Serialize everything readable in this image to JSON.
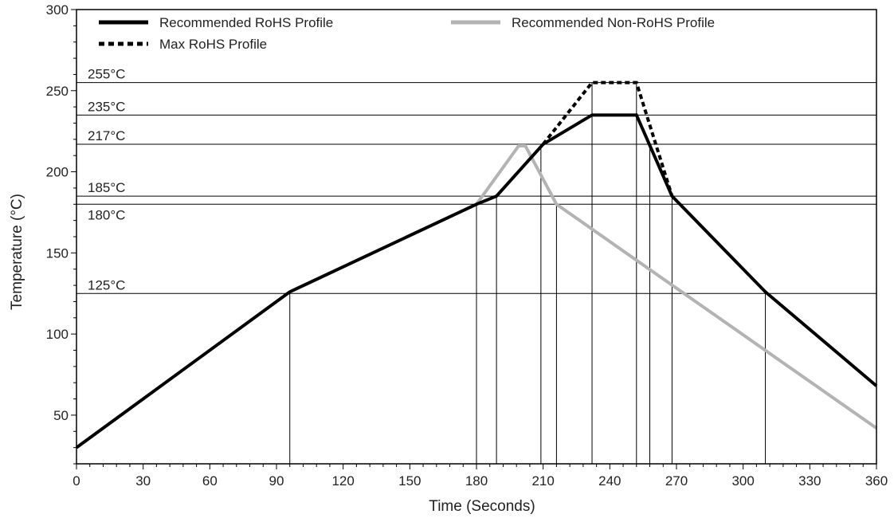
{
  "chart_data": {
    "type": "line",
    "xlabel": "Time (Seconds)",
    "ylabel": "Temperature (°C)",
    "xlim": [
      0,
      360
    ],
    "ylim": [
      20,
      300
    ],
    "xticks": [
      0,
      30,
      60,
      90,
      120,
      150,
      180,
      210,
      240,
      270,
      300,
      330,
      360
    ],
    "yticks": [
      50,
      100,
      150,
      200,
      250,
      300
    ],
    "legend_position": "top",
    "series": [
      {
        "name": "Recommended RoHS Profile",
        "color": "#000000",
        "style": "solid",
        "points": [
          [
            0,
            30
          ],
          [
            96,
            126
          ],
          [
            180,
            180
          ],
          [
            189,
            185
          ],
          [
            210,
            217
          ],
          [
            232,
            235
          ],
          [
            252,
            235
          ],
          [
            268,
            185
          ],
          [
            310,
            126
          ],
          [
            360,
            68
          ]
        ]
      },
      {
        "name": "Recommended Non-RoHS Profile",
        "color": "#b3b3b3",
        "style": "solid",
        "points": [
          [
            180,
            180
          ],
          [
            199,
            216
          ],
          [
            202,
            216
          ],
          [
            216,
            180
          ],
          [
            360,
            42
          ]
        ]
      },
      {
        "name": "Max RoHS Profile",
        "color": "#000000",
        "style": "dotted",
        "points": [
          [
            210,
            217
          ],
          [
            232,
            255
          ],
          [
            252,
            255
          ],
          [
            268,
            185
          ]
        ]
      }
    ],
    "reference_lines": [
      {
        "value": 255,
        "label": "255°C"
      },
      {
        "value": 235,
        "label": "235°C"
      },
      {
        "value": 217,
        "label": "217°C"
      },
      {
        "value": 185,
        "label": "185°C"
      },
      {
        "value": 180,
        "label": "180°C"
      },
      {
        "value": 125,
        "label": "125°C"
      }
    ],
    "vertical_markers": [
      {
        "x": 96,
        "y": 126
      },
      {
        "x": 180,
        "y": 180
      },
      {
        "x": 189,
        "y": 185
      },
      {
        "x": 209,
        "y": 217
      },
      {
        "x": 216,
        "y": 180
      },
      {
        "x": 232,
        "y": 255
      },
      {
        "x": 252,
        "y": 255
      },
      {
        "x": 258,
        "y": 217
      },
      {
        "x": 268,
        "y": 185
      },
      {
        "x": 310,
        "y": 126
      }
    ]
  }
}
